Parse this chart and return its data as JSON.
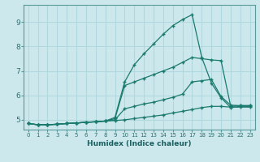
{
  "xlabel": "Humidex (Indice chaleur)",
  "bg_color": "#cce8ec",
  "grid_color": "#b0d8de",
  "line_color": "#1a7a6e",
  "xlim": [
    -0.5,
    23.5
  ],
  "ylim": [
    4.6,
    9.7
  ],
  "xticks": [
    0,
    1,
    2,
    3,
    4,
    5,
    6,
    7,
    8,
    9,
    10,
    11,
    12,
    13,
    14,
    15,
    16,
    17,
    18,
    19,
    20,
    21,
    22,
    23
  ],
  "yticks": [
    5,
    6,
    7,
    8,
    9
  ],
  "series": [
    [
      4.85,
      4.8,
      4.8,
      4.82,
      4.85,
      4.87,
      4.9,
      4.92,
      4.95,
      4.97,
      5.0,
      5.05,
      5.1,
      5.15,
      5.2,
      5.28,
      5.35,
      5.42,
      5.5,
      5.55,
      5.55,
      5.52,
      5.52,
      5.52
    ],
    [
      4.85,
      4.8,
      4.8,
      4.82,
      4.85,
      4.87,
      4.9,
      4.92,
      4.95,
      5.0,
      5.45,
      5.55,
      5.65,
      5.72,
      5.82,
      5.92,
      6.05,
      6.55,
      6.6,
      6.65,
      5.95,
      5.6,
      5.58,
      5.58
    ],
    [
      4.85,
      4.8,
      4.8,
      4.82,
      4.85,
      4.87,
      4.9,
      4.92,
      4.95,
      5.05,
      6.4,
      6.55,
      6.7,
      6.85,
      7.0,
      7.15,
      7.35,
      7.55,
      7.5,
      7.45,
      7.42,
      5.55,
      5.58,
      5.58
    ],
    [
      4.85,
      4.8,
      4.8,
      4.82,
      4.85,
      4.87,
      4.9,
      4.92,
      4.95,
      5.1,
      6.55,
      7.25,
      7.7,
      8.1,
      8.5,
      8.85,
      9.1,
      9.3,
      7.55,
      6.5,
      5.9,
      5.5,
      5.55,
      5.55
    ]
  ]
}
